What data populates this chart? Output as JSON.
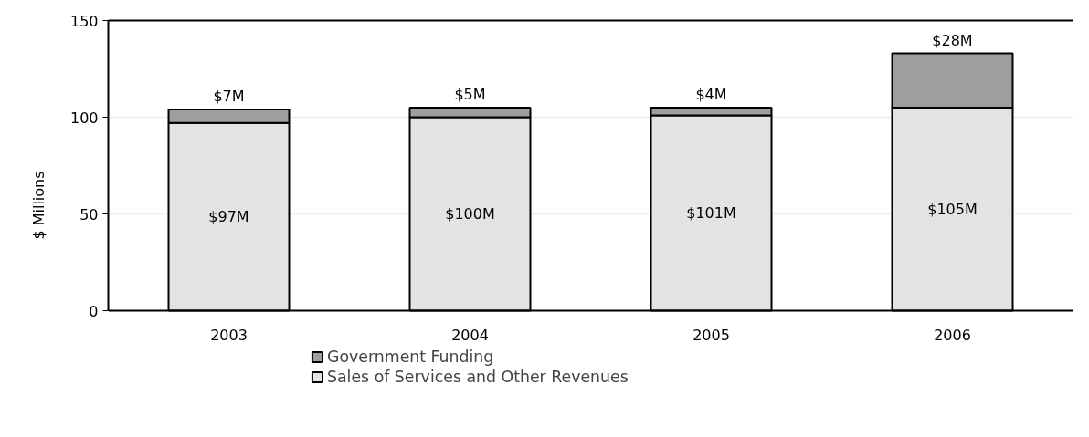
{
  "chart_data": {
    "type": "bar",
    "ylabel": "$ Millions",
    "categories": [
      "2003",
      "2004",
      "2005",
      "2006"
    ],
    "stacked": true,
    "series": [
      {
        "name": "Sales of Services and Other Revenues",
        "color": "#e3e3e3",
        "values": [
          97,
          100,
          101,
          105
        ],
        "value_labels": [
          "$97M",
          "$100M",
          "$101M",
          "$105M"
        ]
      },
      {
        "name": "Government Funding",
        "color": "#9e9e9e",
        "values": [
          7,
          5,
          4,
          28
        ],
        "value_labels": [
          "$7M",
          "$5M",
          "$4M",
          "$28M"
        ]
      }
    ],
    "ylim": [
      0,
      150
    ],
    "yticks": [
      0,
      50,
      100,
      150
    ],
    "grid": "y",
    "legend": "bottom"
  }
}
